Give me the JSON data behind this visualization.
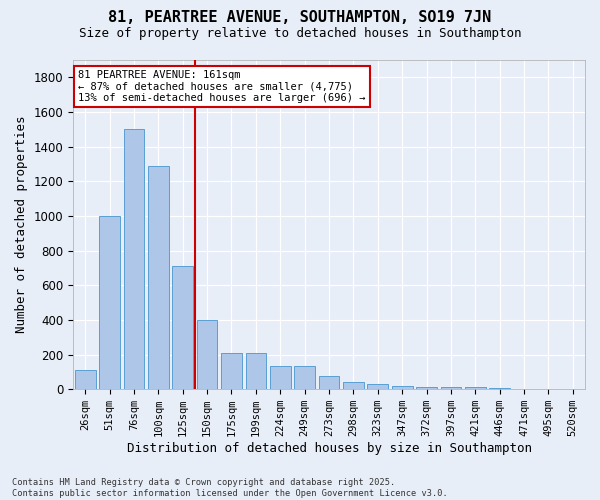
{
  "title": "81, PEARTREE AVENUE, SOUTHAMPTON, SO19 7JN",
  "subtitle": "Size of property relative to detached houses in Southampton",
  "xlabel": "Distribution of detached houses by size in Southampton",
  "ylabel": "Number of detached properties",
  "categories": [
    "26sqm",
    "51sqm",
    "76sqm",
    "100sqm",
    "125sqm",
    "150sqm",
    "175sqm",
    "199sqm",
    "224sqm",
    "249sqm",
    "273sqm",
    "298sqm",
    "323sqm",
    "347sqm",
    "372sqm",
    "397sqm",
    "421sqm",
    "446sqm",
    "471sqm",
    "495sqm",
    "520sqm"
  ],
  "values": [
    110,
    1000,
    1500,
    1290,
    710,
    400,
    210,
    210,
    135,
    135,
    75,
    40,
    30,
    20,
    15,
    15,
    12,
    5,
    0,
    0,
    0
  ],
  "bar_color": "#aec6e8",
  "bar_edge_color": "#5a9fd4",
  "vline_x": 4.5,
  "vline_color": "#cc0000",
  "annotation_text": "81 PEARTREE AVENUE: 161sqm\n← 87% of detached houses are smaller (4,775)\n13% of semi-detached houses are larger (696) →",
  "annotation_box_color": "#ffffff",
  "annotation_box_edge": "#cc0000",
  "ylim": [
    0,
    1900
  ],
  "yticks": [
    0,
    200,
    400,
    600,
    800,
    1000,
    1200,
    1400,
    1600,
    1800
  ],
  "background_color": "#e8eef8",
  "grid_color": "#ffffff",
  "footer_line1": "Contains HM Land Registry data © Crown copyright and database right 2025.",
  "footer_line2": "Contains public sector information licensed under the Open Government Licence v3.0.",
  "title_fontsize": 11,
  "subtitle_fontsize": 9
}
